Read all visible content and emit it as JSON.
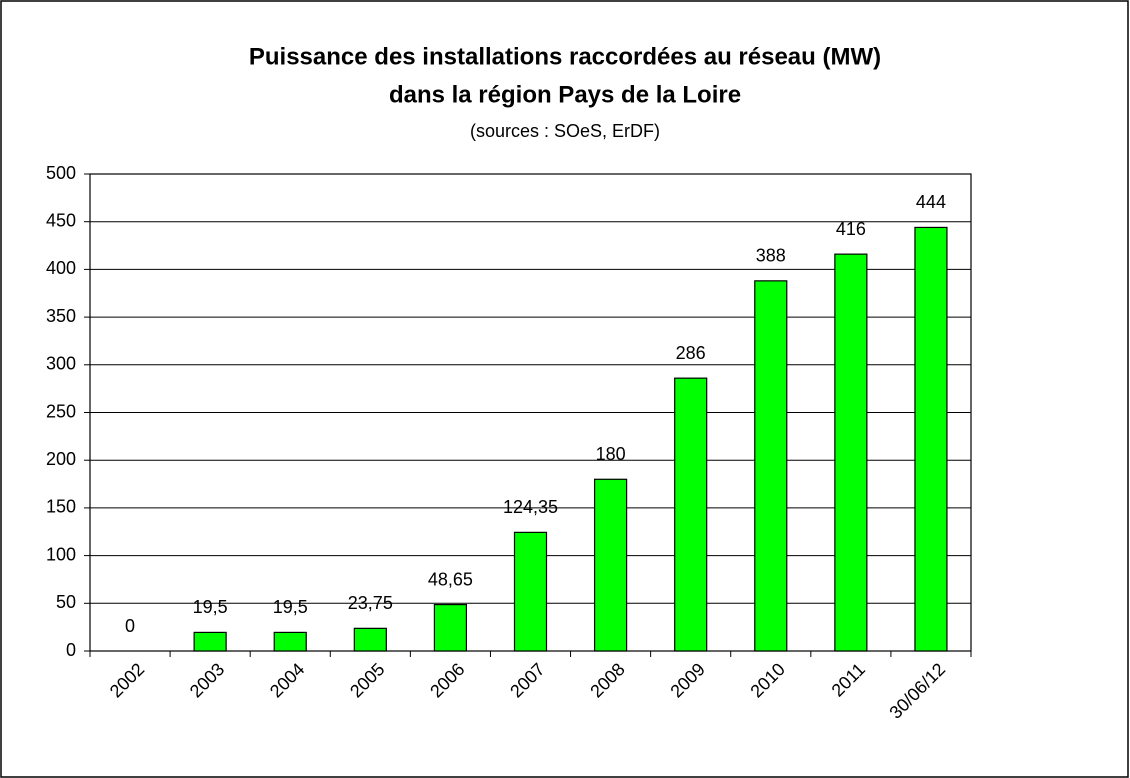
{
  "chart_data": {
    "type": "bar",
    "title": [
      "Puissance des installations raccordées au réseau (MW)",
      "dans la région Pays de la Loire"
    ],
    "subtitle": "(sources : SOeS, ErDF)",
    "categories": [
      "2002",
      "2003",
      "2004",
      "2005",
      "2006",
      "2007",
      "2008",
      "2009",
      "2010",
      "2011",
      "30/06/12"
    ],
    "values": [
      0,
      19.5,
      19.5,
      23.75,
      48.65,
      124.35,
      180,
      286,
      388,
      416,
      444
    ],
    "value_labels": [
      "0",
      "19,5",
      "19,5",
      "23,75",
      "48,65",
      "124,35",
      "180",
      "286",
      "388",
      "416",
      "444"
    ],
    "color": "#00ff00",
    "ylim": [
      0,
      500
    ],
    "yticks": [
      0,
      50,
      100,
      150,
      200,
      250,
      300,
      350,
      400,
      450,
      500
    ],
    "grid": true
  }
}
